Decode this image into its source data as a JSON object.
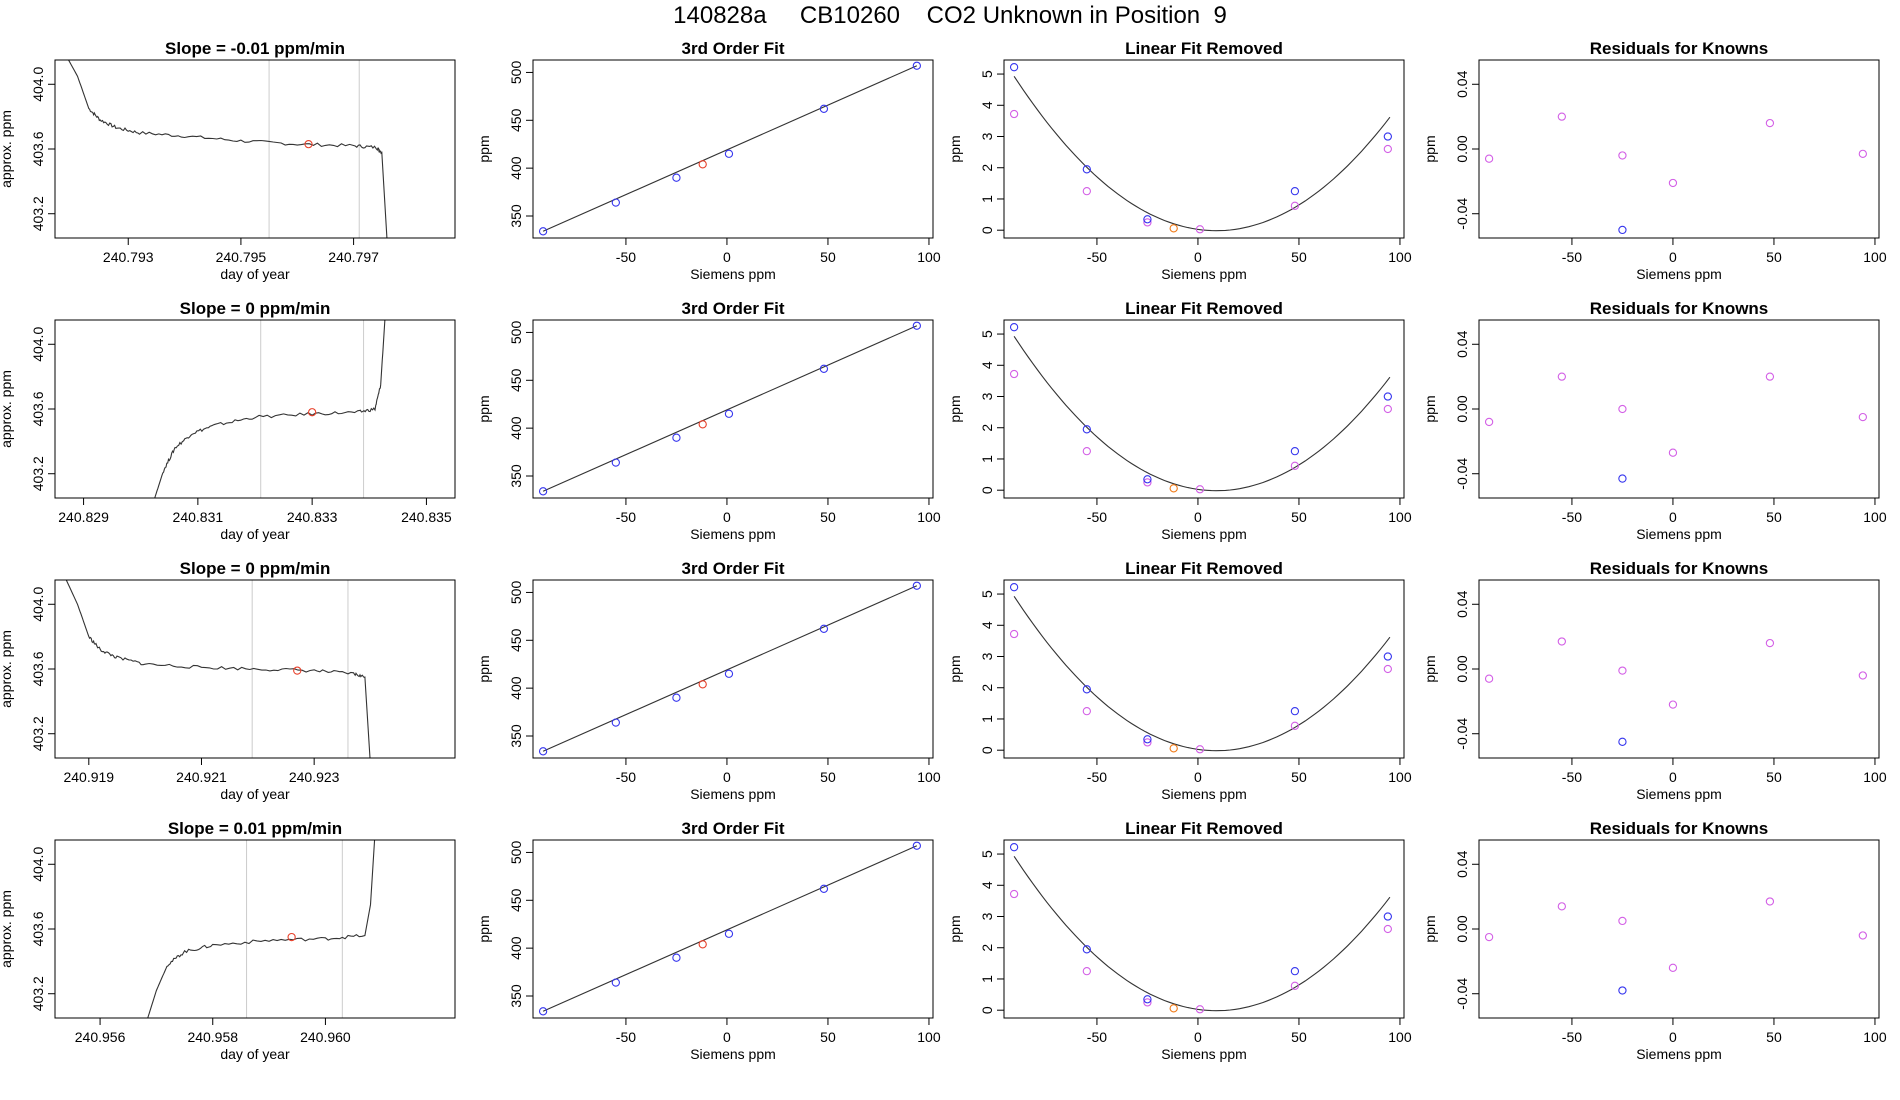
{
  "page_title": "140828a     CB10260    CO2 Unknown in Position  9",
  "colors": {
    "trace": "#333333",
    "red": "#e8402a",
    "blue": "#3535ee",
    "magenta": "#d35fe6",
    "orange": "#f07a18",
    "vline": "#cccccc",
    "axis": "#000000"
  },
  "chart_data": [
    {
      "id": "r1c1",
      "type": "line",
      "title": "Slope =  -0.01  ppm/min",
      "xlabel": "day of year",
      "ylabel": "approx. ppm",
      "xlim": [
        240.7917,
        240.7988
      ],
      "ylim": [
        403.05,
        404.15
      ],
      "xticks": [
        240.793,
        240.795,
        240.797
      ],
      "xticklabels": [
        "240.793",
        "240.795",
        "240.797"
      ],
      "yticks": [
        403.2,
        403.6,
        404.0
      ],
      "yticklabels": [
        "403.2",
        "403.6",
        "404.0"
      ],
      "vlines": [
        240.7955,
        240.7971
      ],
      "trace": {
        "x": [
          240.7917,
          240.7921,
          240.7923,
          240.7925,
          240.7928,
          240.7932,
          240.794,
          240.795,
          240.796,
          240.797,
          240.7974,
          240.7975,
          240.7976
        ],
        "y": [
          404.3,
          404.05,
          403.85,
          403.78,
          403.73,
          403.7,
          403.68,
          403.65,
          403.63,
          403.62,
          403.61,
          403.58,
          403.0
        ]
      },
      "point": {
        "x": 240.7962,
        "y": 403.63
      }
    },
    {
      "id": "r2c1",
      "type": "line",
      "title": "Slope =  0  ppm/min",
      "xlabel": "day of year",
      "ylabel": "approx. ppm",
      "xlim": [
        240.8285,
        240.8355
      ],
      "ylim": [
        403.05,
        404.15
      ],
      "xticks": [
        240.829,
        240.831,
        240.833,
        240.835
      ],
      "xticklabels": [
        "240.829",
        "240.831",
        "240.833",
        "240.835"
      ],
      "yticks": [
        403.2,
        403.6,
        404.0
      ],
      "yticklabels": [
        "403.2",
        "403.6",
        "404.0"
      ],
      "vlines": [
        240.8321,
        240.8339
      ],
      "trace": {
        "x": [
          240.8302,
          240.8304,
          240.8306,
          240.8309,
          240.8313,
          240.832,
          240.833,
          240.8338,
          240.8341,
          240.8342,
          240.8343
        ],
        "y": [
          403.0,
          403.22,
          403.36,
          403.45,
          403.5,
          403.55,
          403.57,
          403.58,
          403.6,
          403.75,
          404.3
        ]
      },
      "point": {
        "x": 240.833,
        "y": 403.58
      }
    },
    {
      "id": "r3c1",
      "type": "line",
      "title": "Slope =  0  ppm/min",
      "xlabel": "day of year",
      "ylabel": "approx. ppm",
      "xlim": [
        240.9184,
        240.9255
      ],
      "ylim": [
        403.05,
        404.15
      ],
      "xticks": [
        240.919,
        240.921,
        240.923
      ],
      "xticklabels": [
        "240.919",
        "240.921",
        "240.923"
      ],
      "yticks": [
        403.2,
        403.6,
        404.0
      ],
      "yticklabels": [
        "403.2",
        "403.6",
        "404.0"
      ],
      "vlines": [
        240.9219,
        240.9236
      ],
      "trace": {
        "x": [
          240.9184,
          240.9188,
          240.919,
          240.9192,
          240.9195,
          240.92,
          240.921,
          240.922,
          240.923,
          240.9237,
          240.9239,
          240.924
        ],
        "y": [
          404.3,
          404.0,
          403.8,
          403.72,
          403.67,
          403.63,
          403.61,
          403.6,
          403.59,
          403.57,
          403.55,
          403.0
        ]
      },
      "point": {
        "x": 240.9227,
        "y": 403.59
      }
    },
    {
      "id": "r4c1",
      "type": "line",
      "title": "Slope =  0.01  ppm/min",
      "xlabel": "day of year",
      "ylabel": "approx. ppm",
      "xlim": [
        240.9552,
        240.9623
      ],
      "ylim": [
        403.05,
        404.15
      ],
      "xticks": [
        240.956,
        240.958,
        240.96
      ],
      "xticklabels": [
        "240.956",
        "240.958",
        "240.960"
      ],
      "yticks": [
        403.2,
        403.6,
        404.0
      ],
      "yticklabels": [
        "403.2",
        "403.6",
        "404.0"
      ],
      "vlines": [
        240.9586,
        240.9603
      ],
      "trace": {
        "x": [
          240.9568,
          240.957,
          240.9572,
          240.9575,
          240.958,
          240.959,
          240.96,
          240.9607,
          240.9608,
          240.9609
        ],
        "y": [
          403.0,
          403.22,
          403.38,
          403.46,
          403.5,
          403.53,
          403.54,
          403.56,
          403.75,
          404.3
        ]
      },
      "point": {
        "x": 240.9594,
        "y": 403.55
      }
    },
    {
      "id": "fit",
      "type": "scatter",
      "title": "3rd Order Fit",
      "xlabel": "Siemens ppm",
      "ylabel": "ppm",
      "xlim": [
        -96,
        102
      ],
      "ylim": [
        327,
        513
      ],
      "xticks": [
        -50,
        0,
        50,
        100
      ],
      "xticklabels": [
        "-50",
        "0",
        "50",
        "100"
      ],
      "yticks": [
        350,
        400,
        450,
        500
      ],
      "yticklabels": [
        "350",
        "400",
        "450",
        "500"
      ],
      "fitline": {
        "x": [
          -91,
          94
        ],
        "y": [
          334,
          507
        ]
      },
      "blue": {
        "x": [
          -91,
          -55,
          -25,
          1,
          48,
          94
        ],
        "y": [
          334,
          364,
          390,
          415,
          462,
          507
        ]
      },
      "red": {
        "x": [
          -12
        ],
        "y": [
          404
        ]
      }
    },
    {
      "id": "linfit",
      "type": "scatter",
      "title": "Linear Fit Removed",
      "xlabel": "Siemens ppm",
      "ylabel": "ppm",
      "xlim": [
        -96,
        102
      ],
      "ylim": [
        -0.25,
        5.45
      ],
      "xticks": [
        -50,
        0,
        50,
        100
      ],
      "xticklabels": [
        "-50",
        "0",
        "50",
        "100"
      ],
      "yticks": [
        0,
        1,
        2,
        3,
        4,
        5
      ],
      "yticklabels": [
        "0",
        "1",
        "2",
        "3",
        "4",
        "5"
      ],
      "curve": {
        "a": 0.000493,
        "b": -0.00902,
        "c": 0.026,
        "xmin": -91,
        "xmax": 95
      },
      "blue": {
        "x": [
          -91,
          -55,
          -25,
          48,
          94
        ],
        "y": [
          5.22,
          1.95,
          0.35,
          1.25,
          3.0
        ]
      },
      "magenta": {
        "x": [
          -91,
          -55,
          -25,
          1,
          48,
          94
        ],
        "y": [
          3.72,
          1.25,
          0.25,
          0.03,
          0.78,
          2.6
        ]
      },
      "orange": {
        "x": [
          -12
        ],
        "y": [
          0.06
        ]
      }
    },
    {
      "id": "resid",
      "type": "scatter",
      "title": "Residuals for Knowns",
      "xlabel": "Siemens ppm",
      "ylabel": "ppm",
      "xlim": [
        -96,
        102
      ],
      "ylim": [
        -0.055,
        0.055
      ],
      "xticks": [
        -50,
        0,
        50,
        100
      ],
      "xticklabels": [
        "-50",
        "0",
        "50",
        "100"
      ],
      "yticks": [
        -0.04,
        0.0,
        0.04
      ],
      "yticklabels": [
        "-0.04",
        "0.00",
        "0.04"
      ],
      "rows": [
        {
          "magenta": {
            "x": [
              -91,
              -55,
              -25,
              0,
              48,
              94
            ],
            "y": [
              -0.006,
              0.02,
              -0.004,
              -0.021,
              0.016,
              -0.003
            ]
          },
          "blue": {
            "x": [
              -25
            ],
            "y": [
              -0.05
            ]
          }
        },
        {
          "magenta": {
            "x": [
              -91,
              -55,
              -25,
              0,
              48,
              94
            ],
            "y": [
              -0.008,
              0.02,
              0.0,
              -0.027,
              0.02,
              -0.005
            ]
          },
          "blue": {
            "x": [
              -25
            ],
            "y": [
              -0.043
            ]
          }
        },
        {
          "magenta": {
            "x": [
              -91,
              -55,
              -25,
              0,
              48,
              94
            ],
            "y": [
              -0.006,
              0.017,
              -0.001,
              -0.022,
              0.016,
              -0.004
            ]
          },
          "blue": {
            "x": [
              -25
            ],
            "y": [
              -0.045
            ]
          }
        },
        {
          "magenta": {
            "x": [
              -91,
              -55,
              -25,
              0,
              48,
              94
            ],
            "y": [
              -0.005,
              0.014,
              0.005,
              -0.024,
              0.017,
              -0.004
            ]
          },
          "blue": {
            "x": [
              -25
            ],
            "y": [
              -0.038
            ]
          }
        }
      ]
    }
  ]
}
